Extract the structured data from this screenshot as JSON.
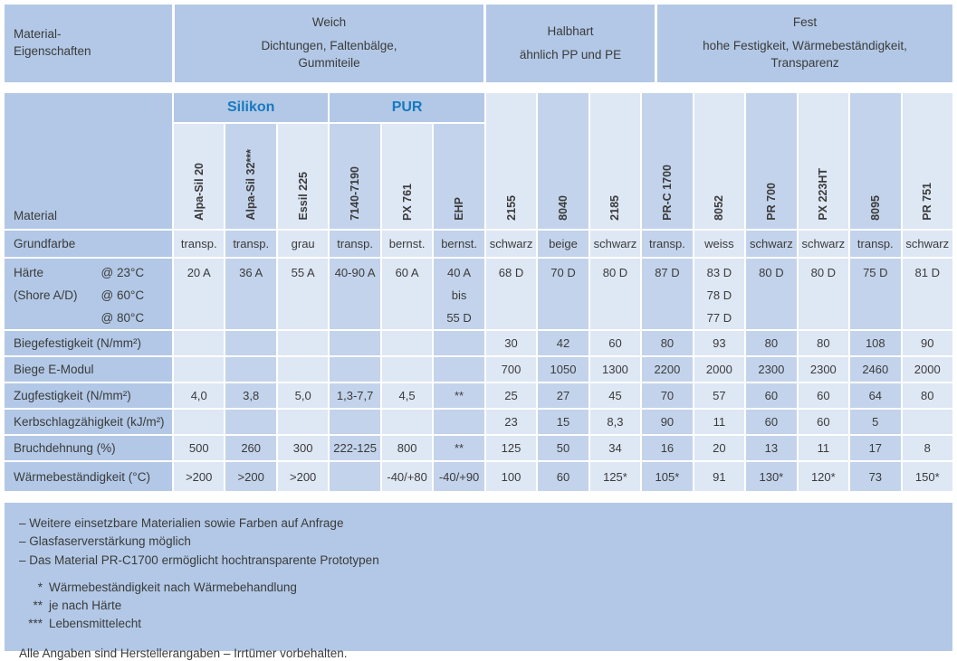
{
  "page": {
    "background": "#ffffff",
    "text_color": "#3b3b3b",
    "panel_blue": "#b2c8e6",
    "column_light": "#dee7f4",
    "column_dark": "#c3d3eb",
    "accent_blue": "#1879bf"
  },
  "top_header": {
    "title": "Material-\nEigenschaften",
    "groups": [
      {
        "name": "Weich",
        "description": "Dichtungen, Faltenbälge,\nGummiteile"
      },
      {
        "name": "Halbhart",
        "description": "ähnlich PP und PE"
      },
      {
        "name": "Fest",
        "description": "hohe Festigkeit, Wärmebeständigkeit,\nTransparenz"
      }
    ]
  },
  "materials_table": {
    "corner_label": "Material",
    "groups": [
      {
        "label": "Silikon"
      },
      {
        "label": "PUR"
      }
    ],
    "columns": [
      "Alpa-Sil 20",
      "Alpa-Sil 32***",
      "Essil 225",
      "7140-7190",
      "PX 761",
      "EHP",
      "2155",
      "8040",
      "2185",
      "PR-C 1700",
      "8052",
      "PR 700",
      "PX 223HT",
      "8095",
      "PR 751"
    ],
    "rows": [
      {
        "label": "Grundfarbe",
        "cells": [
          "transp.",
          "transp.",
          "grau",
          "transp.",
          "bernst.",
          "bernst.",
          "schwarz",
          "beige",
          "schwarz",
          "transp.",
          "weiss",
          "schwarz",
          "schwarz",
          "transp.",
          "schwarz"
        ]
      },
      {
        "label": "Härte\n(Shore A/D)",
        "conditions": [
          "@ 23°C",
          "@ 60°C",
          "@ 80°C"
        ],
        "cells": [
          "20 A",
          "36 A",
          "55 A",
          "40-90 A",
          "60 A",
          "40 A\nbis\n55 D",
          "68 D",
          "70 D",
          "80 D",
          "87 D",
          "83 D\n78 D\n77 D",
          "80 D",
          "80 D",
          "75 D",
          "81 D"
        ]
      },
      {
        "label": "Biegefestigkeit (N/mm²)",
        "cells": [
          "",
          "",
          "",
          "",
          "",
          "",
          "30",
          "42",
          "60",
          "80",
          "93",
          "80",
          "80",
          "108",
          "90"
        ]
      },
      {
        "label": "Biege E-Modul",
        "cells": [
          "",
          "",
          "",
          "",
          "",
          "",
          "700",
          "1050",
          "1300",
          "2200",
          "2000",
          "2300",
          "2300",
          "2460",
          "2000"
        ]
      },
      {
        "label": "Zugfestigkeit (N/mm²)",
        "cells": [
          "4,0",
          "3,8",
          "5,0",
          "1,3-7,7",
          "4,5",
          "**",
          "25",
          "27",
          "45",
          "70",
          "57",
          "60",
          "60",
          "64",
          "80"
        ]
      },
      {
        "label": "Kerbschlagzähigkeit (kJ/m²)",
        "cells": [
          "",
          "",
          "",
          "",
          "",
          "",
          "23",
          "15",
          "8,3",
          "90",
          "11",
          "60",
          "60",
          "5",
          ""
        ]
      },
      {
        "label": "Bruchdehnung (%)",
        "cells": [
          "500",
          "260",
          "300",
          "222-125",
          "800",
          "**",
          "125",
          "50",
          "34",
          "16",
          "20",
          "13",
          "11",
          "17",
          "8"
        ]
      },
      {
        "label": "Wärmebeständigkeit (°C)",
        "cells": [
          ">200",
          ">200",
          ">200",
          "",
          "-40/+80",
          "-40/+90",
          "100",
          "60",
          "125*",
          "105*",
          "91",
          "130*",
          "120*",
          "73",
          "150*"
        ]
      }
    ]
  },
  "footnotes": {
    "dash_notes": [
      "– Weitere einsetzbare Materialien sowie Farben auf Anfrage",
      "– Glasfaserverstärkung möglich",
      "– Das Material PR-C1700 ermöglicht hochtransparente Prototypen"
    ],
    "star_notes": [
      {
        "marker": "*",
        "text": "Wärmebeständigkeit nach Wärmebehandlung"
      },
      {
        "marker": "**",
        "text": "je nach Härte"
      },
      {
        "marker": "***",
        "text": "Lebensmittelecht"
      }
    ],
    "disclaimer": "Alle Angaben sind Herstellerangaben – Irrtümer vorbehalten."
  }
}
